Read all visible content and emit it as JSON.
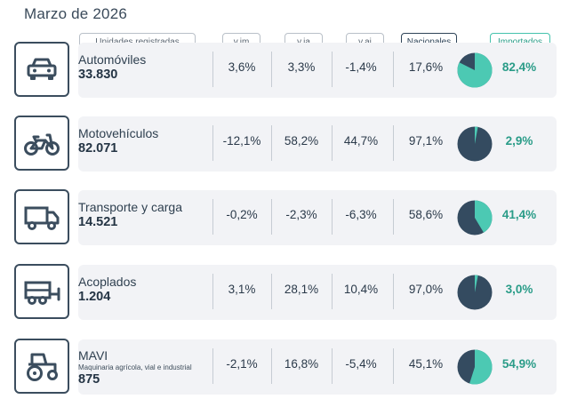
{
  "title": "Marzo de 2026",
  "headers": {
    "units": "Unidades registradas",
    "vim": "v.im",
    "via": "v.ia",
    "vai": "v.ai",
    "nacionales": "Nacionales",
    "importados": "Importados"
  },
  "colors": {
    "nacionales": "#344b60",
    "importados": "#4cc9b3"
  },
  "rows": [
    {
      "icon": "car-icon",
      "name": "Automóviles",
      "subtitle": "",
      "units": "33.830",
      "vim": "3,6%",
      "via": "3,3%",
      "vai": "-1,4%",
      "nacionales": "17,6%",
      "importados": "82,4%"
    },
    {
      "icon": "motorcycle-icon",
      "name": "Motovehículos",
      "subtitle": "",
      "units": "82.071",
      "vim": "-12,1%",
      "via": "58,2%",
      "vai": "44,7%",
      "nacionales": "97,1%",
      "importados": "2,9%"
    },
    {
      "icon": "truck-icon",
      "name": "Transporte y carga",
      "subtitle": "",
      "units": "14.521",
      "vim": "-0,2%",
      "via": "-2,3%",
      "vai": "-6,3%",
      "nacionales": "58,6%",
      "importados": "41,4%"
    },
    {
      "icon": "trailer-icon",
      "name": "Acoplados",
      "subtitle": "",
      "units": "1.204",
      "vim": "3,1%",
      "via": "28,1%",
      "vai": "10,4%",
      "nacionales": "97,0%",
      "importados": "3,0%"
    },
    {
      "icon": "tractor-icon",
      "name": "MAVI",
      "subtitle": "Maquinaria agrícola, vial e industrial",
      "units": "875",
      "vim": "-2,1%",
      "via": "16,8%",
      "vai": "-5,4%",
      "nacionales": "45,1%",
      "importados": "54,9%"
    }
  ],
  "chart_data": {
    "type": "pie",
    "categories": [
      "Automóviles",
      "Motovehículos",
      "Transporte y carga",
      "Acoplados",
      "MAVI"
    ],
    "series": [
      {
        "name": "Nacionales",
        "values": [
          17.6,
          97.1,
          58.6,
          97.0,
          45.1
        ]
      },
      {
        "name": "Importados",
        "values": [
          82.4,
          2.9,
          41.4,
          3.0,
          54.9
        ]
      }
    ]
  }
}
